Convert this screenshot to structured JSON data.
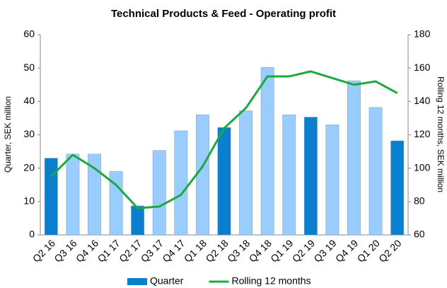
{
  "chart_data": {
    "type": "bar",
    "title": "Technical Products & Feed - Operating profit",
    "ylabel": "Quarter, SEK million",
    "y2label": "Rolling 12 months, SEK million",
    "categories": [
      "Q2 16",
      "Q3 16",
      "Q4 16",
      "Q1 17",
      "Q2 17",
      "Q3 17",
      "Q4 17",
      "Q1 18",
      "Q2 18",
      "Q3 18",
      "Q4 18",
      "Q1 19",
      "Q2 19",
      "Q3 19",
      "Q4 19",
      "Q1 20",
      "Q2 20"
    ],
    "series": [
      {
        "name": "Quarter",
        "type": "bar",
        "color": "#0a7fd0",
        "colors": [
          "#0a7fd0",
          "#99ccff",
          "#99ccff",
          "#99ccff",
          "#0a7fd0",
          "#99ccff",
          "#99ccff",
          "#99ccff",
          "#0a7fd0",
          "#99ccff",
          "#99ccff",
          "#99ccff",
          "#0a7fd0",
          "#99ccff",
          "#99ccff",
          "#99ccff",
          "#0a7fd0"
        ],
        "values": [
          23,
          24.2,
          24.2,
          19,
          8.7,
          25.3,
          31.2,
          36,
          32.2,
          37.2,
          50.2,
          36,
          35.3,
          33,
          46.2,
          38.2,
          28.2
        ]
      },
      {
        "name": "Rolling 12 months",
        "type": "line",
        "axis": "y2",
        "color": "#1aab3c",
        "values": [
          95,
          108,
          100,
          90,
          76,
          77,
          84,
          101,
          124,
          136,
          155,
          155,
          158,
          154,
          150,
          152,
          145
        ]
      }
    ],
    "ylim": [
      0,
      60
    ],
    "yticks": [
      0,
      10,
      20,
      30,
      40,
      50,
      60
    ],
    "y2lim": [
      60,
      180
    ],
    "y2ticks": [
      60,
      80,
      100,
      120,
      140,
      160,
      180
    ],
    "legend": "bottom"
  }
}
